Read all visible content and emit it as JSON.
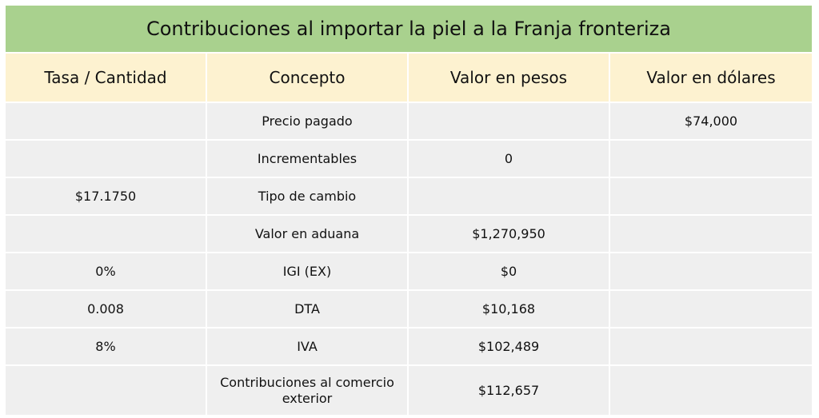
{
  "title": "Contribuciones al importar la piel a la Franja fronteriza",
  "headers": [
    "Tasa / Cantidad",
    "Concepto",
    "Valor en pesos",
    "Valor en dólares"
  ],
  "rows": [
    [
      "",
      "Precio pagado",
      "",
      "$74,000"
    ],
    [
      "",
      "Incrementables",
      "0",
      ""
    ],
    [
      "$17.1750",
      "Tipo de cambio",
      "",
      ""
    ],
    [
      "",
      "Valor en aduana",
      "$1,270,950",
      ""
    ],
    [
      "0%",
      "IGI (EX)",
      "$0",
      ""
    ],
    [
      "0.008",
      "DTA",
      "$10,168",
      ""
    ],
    [
      "8%",
      "IVA",
      "$102,489",
      ""
    ],
    [
      "",
      "Contribuciones al comercio exterior",
      "$112,657",
      ""
    ]
  ],
  "colors": {
    "title_bg": "#a9d18e",
    "header_bg": "#fdf2d0",
    "cell_bg": "#efefef"
  }
}
